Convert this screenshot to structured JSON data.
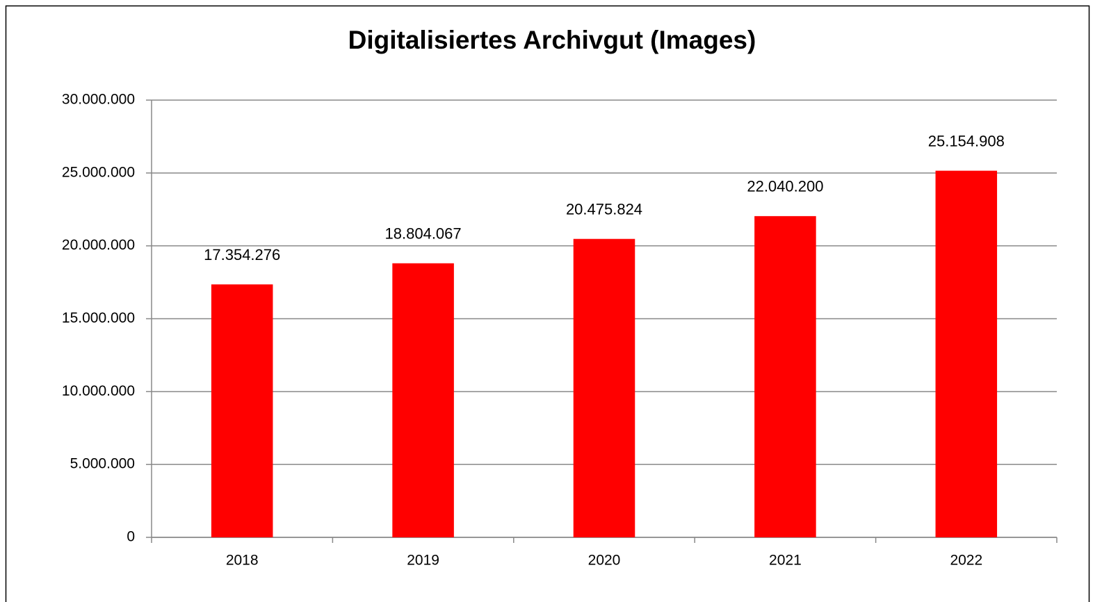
{
  "chart_data": {
    "type": "bar",
    "title": "Digitalisiertes Archivgut (Images)",
    "categories": [
      "2018",
      "2019",
      "2020",
      "2021",
      "2022"
    ],
    "values": [
      17354276,
      18804067,
      20475824,
      22040200,
      25154908
    ],
    "value_labels": [
      "17.354.276",
      "18.804.067",
      "20.475.824",
      "22.040.200",
      "25.154.908"
    ],
    "color": "#ff0000",
    "ylim": [
      0,
      30000000
    ],
    "yticks": [
      0,
      {
        "value": 5000000,
        "label": "5.000.000"
      },
      {
        "value": 10000000,
        "label": "10.000.000"
      },
      {
        "value": 15000000,
        "label": "15.000.000"
      },
      {
        "value": 20000000,
        "label": "20.000.000"
      },
      {
        "value": 25000000,
        "label": "25.000.000"
      },
      {
        "value": 30000000,
        "label": "30.000.000"
      }
    ],
    "grid": true
  }
}
